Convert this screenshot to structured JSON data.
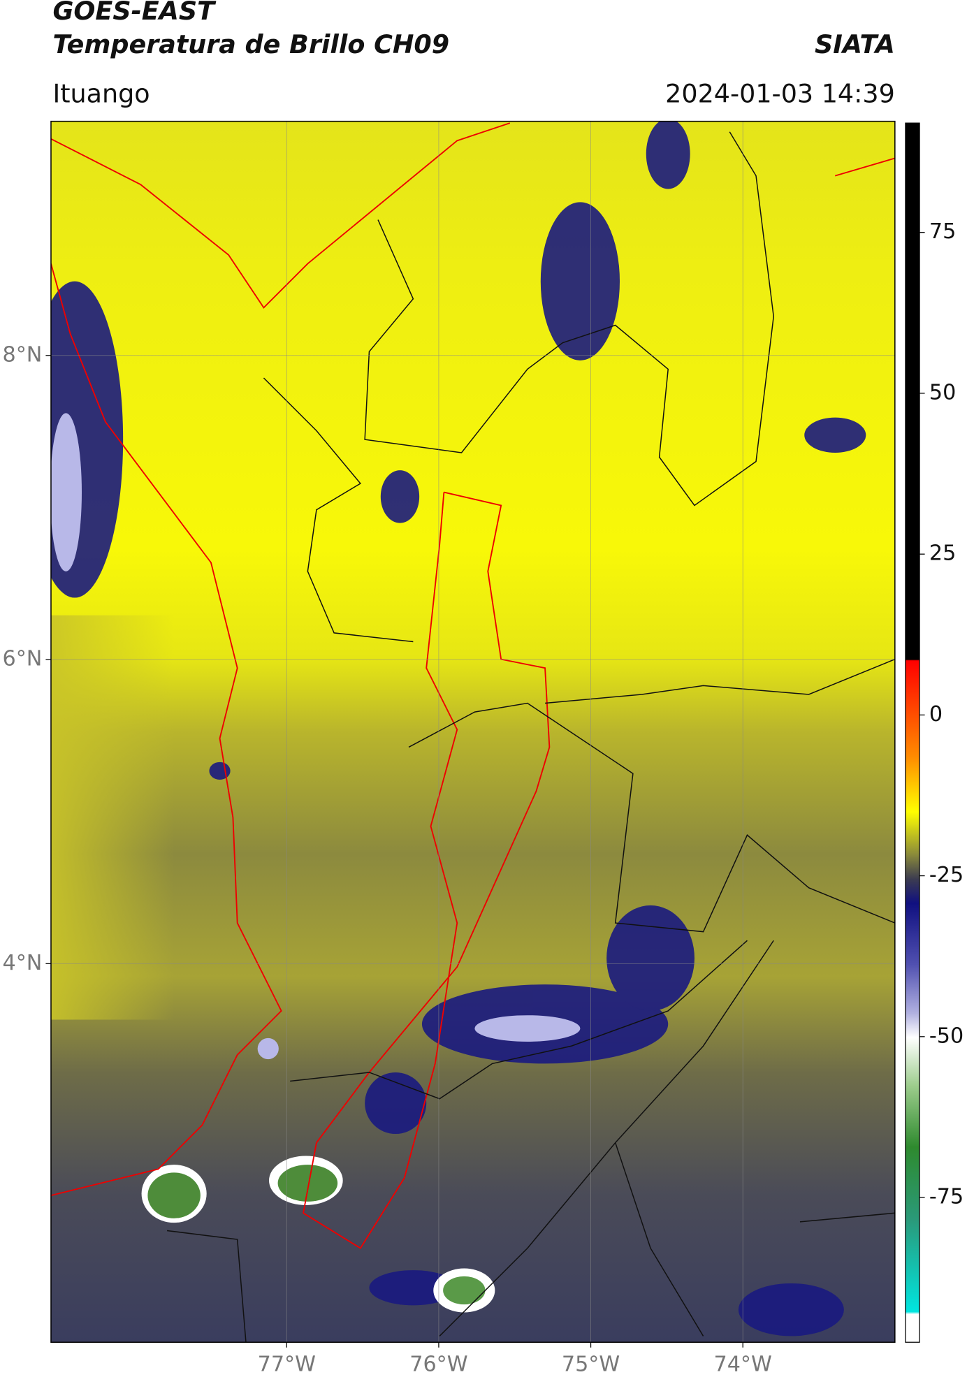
{
  "header": {
    "title": "GOES-EAST",
    "subtitle": "Temperatura de Brillo CH09",
    "brand": "SIATA",
    "location": "Ituango",
    "datetime": "2024-01-03 14:39"
  },
  "map": {
    "lon_range": [
      -78.55,
      -73.0
    ],
    "lat_range": [
      1.51,
      9.54
    ],
    "lon_ticks": [
      {
        "value": -77,
        "label": "77°W"
      },
      {
        "value": -76,
        "label": "76°W"
      },
      {
        "value": -75,
        "label": "75°W"
      },
      {
        "value": -74,
        "label": "74°W"
      }
    ],
    "lat_ticks": [
      {
        "value": 8,
        "label": "8°N"
      },
      {
        "value": 6,
        "label": "6°N"
      },
      {
        "value": 4,
        "label": "4°N"
      }
    ],
    "grid": true
  },
  "colorbar": {
    "range": [
      -97.5,
      92
    ],
    "ticks": [
      75,
      50,
      25,
      0,
      -25,
      -50,
      -75
    ]
  }
}
